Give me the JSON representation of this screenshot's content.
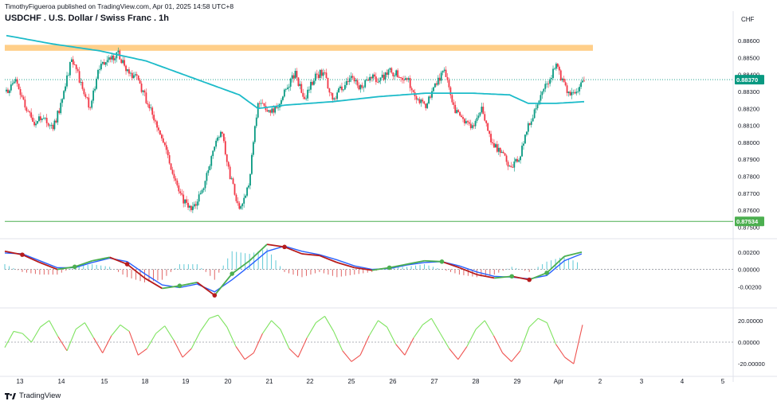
{
  "header": {
    "publisher_line": "TimothyFigueroa published on TradingView.com, Apr 01, 2025 14:58 UTC+8",
    "title": "USDCHF . U.S. Dollar / Swiss Franc . 1h",
    "currency": "CHF",
    "brand": "TradingView"
  },
  "colors": {
    "up": "#089981",
    "down": "#f23645",
    "ma": "#1cbbc9",
    "zone": "#ffc774",
    "support": "#4caf50",
    "osc_fast": "#4caf50",
    "osc_slow": "#2962ff",
    "osc_red": "#b71c1c",
    "rsi_up": "#7ee35f",
    "rsi_down": "#ef5350"
  },
  "chart_data": [
    {
      "type": "candlestick",
      "pane": "price",
      "y_axis_ticks": [
        "0.88600",
        "0.88500",
        "0.88400",
        "0.88300",
        "0.88200",
        "0.88100",
        "0.88000",
        "0.87900",
        "0.87800",
        "0.87700",
        "0.87600",
        "0.87500"
      ],
      "ylim": [
        0.8746,
        0.8868
      ],
      "x_axis_ticks": [
        "13",
        "14",
        "15",
        "18",
        "19",
        "20",
        "21",
        "22",
        "25",
        "26",
        "27",
        "28",
        "29",
        "Apr",
        "2",
        "3",
        "4",
        "5"
      ],
      "current_price_label": "0.88370",
      "current_price": 0.8837,
      "support_label": "0.87534",
      "support_level": 0.87534,
      "resistance_zone": [
        0.8854,
        0.88575
      ],
      "close_path": [
        [
          0,
          0.883
        ],
        [
          2,
          0.8838
        ],
        [
          4,
          0.8822
        ],
        [
          6,
          0.8812
        ],
        [
          8,
          0.8815
        ],
        [
          10,
          0.8808
        ],
        [
          12,
          0.8825
        ],
        [
          14,
          0.885
        ],
        [
          16,
          0.8835
        ],
        [
          18,
          0.882
        ],
        [
          20,
          0.8845
        ],
        [
          22,
          0.8848
        ],
        [
          24,
          0.8852
        ],
        [
          26,
          0.8842
        ],
        [
          28,
          0.8838
        ],
        [
          30,
          0.8825
        ],
        [
          32,
          0.8812
        ],
        [
          34,
          0.8798
        ],
        [
          36,
          0.878
        ],
        [
          38,
          0.8765
        ],
        [
          40,
          0.876
        ],
        [
          42,
          0.8772
        ],
        [
          44,
          0.879
        ],
        [
          46,
          0.8808
        ],
        [
          48,
          0.878
        ],
        [
          50,
          0.876
        ],
        [
          52,
          0.8775
        ],
        [
          54,
          0.8825
        ],
        [
          56,
          0.8818
        ],
        [
          58,
          0.882
        ],
        [
          60,
          0.8832
        ],
        [
          62,
          0.884
        ],
        [
          64,
          0.8825
        ],
        [
          66,
          0.8838
        ],
        [
          68,
          0.8842
        ],
        [
          70,
          0.8825
        ],
        [
          72,
          0.8832
        ],
        [
          74,
          0.8838
        ],
        [
          76,
          0.8832
        ],
        [
          78,
          0.884
        ],
        [
          80,
          0.8836
        ],
        [
          82,
          0.8842
        ],
        [
          84,
          0.884
        ],
        [
          86,
          0.8838
        ],
        [
          88,
          0.8825
        ],
        [
          90,
          0.8822
        ],
        [
          92,
          0.8835
        ],
        [
          94,
          0.8842
        ],
        [
          96,
          0.882
        ],
        [
          98,
          0.8812
        ],
        [
          100,
          0.8808
        ],
        [
          102,
          0.882
        ],
        [
          104,
          0.88
        ],
        [
          106,
          0.8795
        ],
        [
          108,
          0.8785
        ],
        [
          110,
          0.879
        ],
        [
          112,
          0.881
        ],
        [
          114,
          0.8822
        ],
        [
          116,
          0.8835
        ],
        [
          118,
          0.8845
        ],
        [
          120,
          0.8832
        ],
        [
          122,
          0.8828
        ],
        [
          124,
          0.8837
        ]
      ],
      "ma_path": [
        [
          0,
          0.8863
        ],
        [
          10,
          0.8858
        ],
        [
          20,
          0.8854
        ],
        [
          30,
          0.8848
        ],
        [
          40,
          0.8838
        ],
        [
          50,
          0.8828
        ],
        [
          54,
          0.882
        ],
        [
          60,
          0.8822
        ],
        [
          70,
          0.8824
        ],
        [
          80,
          0.8827
        ],
        [
          90,
          0.8829
        ],
        [
          100,
          0.8829
        ],
        [
          108,
          0.8828
        ],
        [
          112,
          0.8823
        ],
        [
          118,
          0.8823
        ],
        [
          124,
          0.8824
        ]
      ]
    },
    {
      "type": "line",
      "pane": "oscillator",
      "y_axis_ticks": [
        "0.00200",
        "0.00000",
        "-0.00200"
      ],
      "ylim": [
        -0.004,
        0.003
      ],
      "series": [
        {
          "values": [
            0.0021,
            0.0017,
            0.0008,
            0.0,
            0.0003,
            0.001,
            0.0014,
            0.0006,
            -0.001,
            -0.0022,
            -0.0019,
            -0.0015,
            -0.003,
            -0.0005,
            0.001,
            0.0029,
            0.0026,
            0.0018,
            0.0016,
            0.0008,
            0.0002,
            -0.0001,
            0.0002,
            0.0006,
            0.001,
            0.0009,
            0.0002,
            -0.0006,
            -0.001,
            -0.0008,
            -0.0012,
            -0.0004,
            0.0015,
            0.002
          ]
        },
        {
          "values": [
            0.0019,
            0.0018,
            0.001,
            0.0002,
            0.0002,
            0.0008,
            0.0013,
            0.0009,
            -0.0005,
            -0.0018,
            -0.0021,
            -0.0017,
            -0.0026,
            -0.0012,
            0.0004,
            0.0021,
            0.0027,
            0.0021,
            0.0017,
            0.0011,
            0.0004,
            0.0,
            0.0001,
            0.0005,
            0.0008,
            0.0009,
            0.0004,
            -0.0003,
            -0.0008,
            -0.0009,
            -0.0011,
            -0.0007,
            0.001,
            0.0018
          ]
        }
      ]
    },
    {
      "type": "line",
      "pane": "momentum",
      "y_axis_ticks": [
        "20.00000",
        "0.00000",
        "-20.00000"
      ],
      "ylim": [
        -28,
        28
      ],
      "values": [
        -5,
        10,
        8,
        0,
        14,
        20,
        5,
        -8,
        12,
        18,
        4,
        -10,
        6,
        16,
        10,
        -12,
        -6,
        8,
        15,
        2,
        -14,
        -6,
        10,
        22,
        25,
        14,
        -4,
        -16,
        -10,
        8,
        20,
        12,
        -6,
        -14,
        4,
        18,
        24,
        10,
        -8,
        -18,
        -12,
        6,
        20,
        14,
        -2,
        -12,
        4,
        16,
        22,
        8,
        -6,
        -16,
        -4,
        12,
        20,
        6,
        -10,
        -18,
        -8,
        14,
        22,
        18,
        -2,
        -14,
        -20,
        16
      ]
    }
  ]
}
